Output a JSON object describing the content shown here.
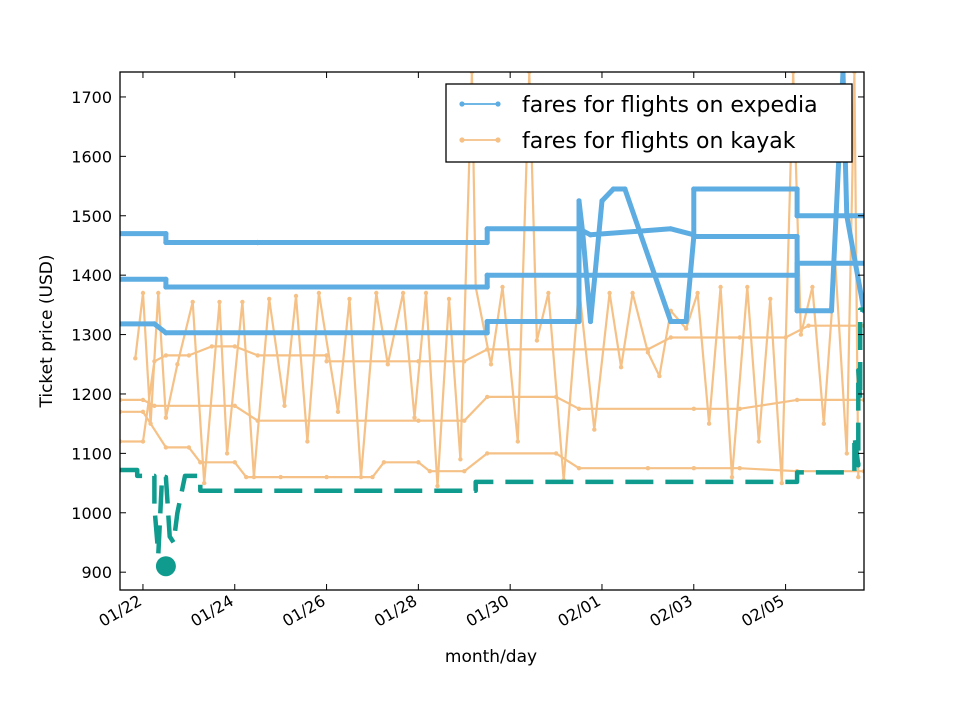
{
  "chart_data": {
    "type": "line",
    "xlabel": "month/day",
    "ylabel": "Ticket price (USD)",
    "x_ticks": [
      "01/22",
      "01/24",
      "01/26",
      "01/28",
      "01/30",
      "02/01",
      "02/03",
      "02/05"
    ],
    "y_ticks": [
      900,
      1000,
      1100,
      1200,
      1300,
      1400,
      1500,
      1600,
      1700
    ],
    "xlim": [
      "01/21 12:00",
      "02/06 17:00"
    ],
    "ylim": [
      870,
      1742
    ],
    "grid": false,
    "legend_position": "top-right",
    "colors": {
      "expedia": "#5dade2",
      "kayak": "#f5c186",
      "minimum": "#0f9b8e"
    },
    "series": [
      {
        "name": "fares for flights on expedia",
        "label_color": "#5dade2",
        "traces": [
          [
            [
              "01/21 12:00",
              1470
            ],
            [
              "01/22 12:00",
              1470
            ],
            [
              "01/22 12:00",
              1455
            ],
            [
              "01/24 12:00",
              1455
            ],
            [
              "01/24 12:00",
              1455
            ],
            [
              "01/29 12:00",
              1455
            ],
            [
              "01/29 12:00",
              1478
            ],
            [
              "01/31 12:00",
              1478
            ],
            [
              "01/31 18:00",
              1468
            ],
            [
              "02/02 12:00",
              1478
            ],
            [
              "02/03 00:00",
              1468
            ],
            [
              "02/03 00:00",
              1545
            ],
            [
              "02/05 06:00",
              1545
            ],
            [
              "02/05 06:00",
              1500
            ],
            [
              "02/06 17:00",
              1500
            ]
          ],
          [
            [
              "01/21 12:00",
              1393
            ],
            [
              "01/22 12:00",
              1393
            ],
            [
              "01/22 12:00",
              1380
            ],
            [
              "01/29 12:00",
              1380
            ],
            [
              "01/29 12:00",
              1400
            ],
            [
              "02/05 06:00",
              1400
            ],
            [
              "02/05 06:00",
              1420
            ],
            [
              "02/06 17:00",
              1420
            ]
          ],
          [
            [
              "01/21 12:00",
              1318
            ],
            [
              "01/22 06:00",
              1318
            ],
            [
              "01/22 12:00",
              1303
            ],
            [
              "01/29 12:00",
              1303
            ],
            [
              "01/29 12:00",
              1322
            ],
            [
              "01/31 12:00",
              1322
            ],
            [
              "01/31 12:00",
              1525
            ],
            [
              "01/31 14:00",
              1470
            ],
            [
              "01/31 18:00",
              1322
            ],
            [
              "02/01 00:00",
              1525
            ],
            [
              "02/01 06:00",
              1545
            ],
            [
              "02/01 12:00",
              1545
            ],
            [
              "02/02 12:00",
              1322
            ],
            [
              "02/02 20:00",
              1322
            ],
            [
              "02/03 00:00",
              1465
            ],
            [
              "02/05 06:00",
              1465
            ],
            [
              "02/05 06:00",
              1340
            ],
            [
              "02/06 00:00",
              1340
            ],
            [
              "02/06 06:00",
              1742
            ],
            [
              "02/06 08:00",
              1500
            ],
            [
              "02/06 17:00",
              1340
            ]
          ]
        ]
      },
      {
        "name": "fares for flights on kayak",
        "label_color": "#f5c186",
        "traces": [
          [
            [
              "01/21 12:00",
              1120
            ],
            [
              "01/22 00:00",
              1120
            ],
            [
              "01/22 06:00",
              1255
            ],
            [
              "01/22 12:00",
              1265
            ],
            [
              "01/23 00:00",
              1265
            ],
            [
              "01/23 12:00",
              1280
            ],
            [
              "01/24 00:00",
              1280
            ],
            [
              "01/24 12:00",
              1265
            ],
            [
              "01/26 00:00",
              1265
            ],
            [
              "01/26 00:00",
              1255
            ],
            [
              "01/28 00:00",
              1255
            ],
            [
              "01/29 00:00",
              1255
            ],
            [
              "01/29 12:00",
              1275
            ],
            [
              "02/02 00:00",
              1275
            ],
            [
              "02/02 12:00",
              1295
            ],
            [
              "02/04 00:00",
              1295
            ],
            [
              "02/05 00:00",
              1295
            ],
            [
              "02/05 12:00",
              1315
            ],
            [
              "02/06 17:00",
              1315
            ]
          ],
          [
            [
              "01/21 12:00",
              1190
            ],
            [
              "01/22 00:00",
              1190
            ],
            [
              "01/22 06:00",
              1180
            ],
            [
              "01/24 00:00",
              1180
            ],
            [
              "01/24 12:00",
              1155
            ],
            [
              "01/28 00:00",
              1155
            ],
            [
              "01/29 00:00",
              1155
            ],
            [
              "01/29 12:00",
              1195
            ],
            [
              "01/31 00:00",
              1195
            ],
            [
              "01/31 12:00",
              1175
            ],
            [
              "02/03 00:00",
              1175
            ],
            [
              "02/04 00:00",
              1175
            ],
            [
              "02/05 06:00",
              1190
            ],
            [
              "02/06 17:00",
              1190
            ]
          ],
          [
            [
              "01/21 12:00",
              1170
            ],
            [
              "01/22 00:00",
              1170
            ],
            [
              "01/22 12:00",
              1110
            ],
            [
              "01/23 00:00",
              1110
            ],
            [
              "01/23 06:00",
              1085
            ],
            [
              "01/24 00:00",
              1085
            ],
            [
              "01/24 06:00",
              1060
            ],
            [
              "01/25 00:00",
              1060
            ],
            [
              "01/26 00:00",
              1060
            ],
            [
              "01/27 00:00",
              1060
            ],
            [
              "01/27 06:00",
              1085
            ],
            [
              "01/28 00:00",
              1085
            ],
            [
              "01/28 06:00",
              1070
            ],
            [
              "01/29 00:00",
              1070
            ],
            [
              "01/29 12:00",
              1100
            ],
            [
              "01/31 00:00",
              1100
            ],
            [
              "01/31 12:00",
              1075
            ],
            [
              "02/02 00:00",
              1075
            ],
            [
              "02/03 00:00",
              1075
            ],
            [
              "02/04 00:00",
              1075
            ],
            [
              "02/05 06:00",
              1070
            ],
            [
              "02/06 17:00",
              1070
            ]
          ],
          [
            [
              "01/21 20:00",
              1260
            ],
            [
              "01/22 00:00",
              1370
            ],
            [
              "01/22 04:00",
              1150
            ],
            [
              "01/22 08:00",
              1370
            ],
            [
              "01/22 12:00",
              1160
            ],
            [
              "01/22 18:00",
              1250
            ],
            [
              "01/23 02:00",
              1355
            ],
            [
              "01/23 08:00",
              1050
            ],
            [
              "01/23 16:00",
              1355
            ],
            [
              "01/23 20:00",
              1100
            ],
            [
              "01/24 04:00",
              1355
            ],
            [
              "01/24 10:00",
              1060
            ],
            [
              "01/24 18:00",
              1360
            ],
            [
              "01/25 02:00",
              1180
            ],
            [
              "01/25 08:00",
              1365
            ],
            [
              "01/25 14:00",
              1120
            ],
            [
              "01/25 20:00",
              1370
            ],
            [
              "01/26 06:00",
              1170
            ],
            [
              "01/26 12:00",
              1360
            ],
            [
              "01/26 18:00",
              1060
            ],
            [
              "01/27 02:00",
              1370
            ],
            [
              "01/27 08:00",
              1250
            ],
            [
              "01/27 16:00",
              1370
            ],
            [
              "01/27 22:00",
              1160
            ],
            [
              "01/28 04:00",
              1370
            ],
            [
              "01/28 10:00",
              1045
            ],
            [
              "01/28 16:00",
              1360
            ],
            [
              "01/28 22:00",
              1090
            ],
            [
              "01/29 04:00",
              1742
            ],
            [
              "01/29 06:00",
              1380
            ],
            [
              "01/29 14:00",
              1250
            ],
            [
              "01/29 20:00",
              1380
            ],
            [
              "01/30 04:00",
              1120
            ],
            [
              "01/30 10:00",
              1742
            ],
            [
              "01/30 14:00",
              1290
            ],
            [
              "01/30 20:00",
              1370
            ],
            [
              "01/31 04:00",
              1055
            ],
            [
              "01/31 12:00",
              1380
            ],
            [
              "01/31 20:00",
              1140
            ],
            [
              "02/01 04:00",
              1370
            ],
            [
              "02/01 10:00",
              1245
            ],
            [
              "02/01 16:00",
              1370
            ],
            [
              "02/02 00:00",
              1270
            ],
            [
              "02/02 06:00",
              1230
            ],
            [
              "02/02 12:00",
              1340
            ],
            [
              "02/02 20:00",
              1310
            ],
            [
              "02/03 02:00",
              1370
            ],
            [
              "02/03 08:00",
              1150
            ],
            [
              "02/03 14:00",
              1380
            ],
            [
              "02/03 20:00",
              1060
            ],
            [
              "02/04 04:00",
              1380
            ],
            [
              "02/04 10:00",
              1120
            ],
            [
              "02/04 16:00",
              1360
            ],
            [
              "02/04 22:00",
              1050
            ],
            [
              "02/05 04:00",
              1742
            ],
            [
              "02/05 08:00",
              1300
            ],
            [
              "02/05 14:00",
              1380
            ],
            [
              "02/05 20:00",
              1150
            ],
            [
              "02/06 02:00",
              1420
            ],
            [
              "02/06 08:00",
              1100
            ],
            [
              "02/06 12:00",
              1742
            ],
            [
              "02/06 14:00",
              1060
            ]
          ]
        ]
      },
      {
        "name": "",
        "label_color": "#0f9b8e",
        "style": "dashed",
        "traces": [
          [
            [
              "01/21 12:00",
              1072
            ],
            [
              "01/21 21:00",
              1072
            ],
            [
              "01/21 21:00",
              1062
            ],
            [
              "01/22 06:00",
              1062
            ],
            [
              "01/22 06:00",
              1010
            ],
            [
              "01/22 08:00",
              930
            ],
            [
              "01/22 10:00",
              1062
            ],
            [
              "01/22 12:00",
              1060
            ],
            [
              "01/22 14:00",
              960
            ],
            [
              "01/22 16:00",
              950
            ],
            [
              "01/22 18:00",
              1000
            ],
            [
              "01/22 22:00",
              1062
            ],
            [
              "01/23 06:00",
              1062
            ],
            [
              "01/23 06:00",
              1037
            ],
            [
              "01/29 06:00",
              1037
            ],
            [
              "01/29 06:00",
              1052
            ],
            [
              "02/05 06:00",
              1052
            ],
            [
              "02/05 06:00",
              1068
            ],
            [
              "02/06 12:00",
              1068
            ],
            [
              "02/06 12:00",
              1130
            ],
            [
              "02/06 14:00",
              1080
            ],
            [
              "02/06 14:00",
              1240
            ],
            [
              "02/06 15:00",
              1190
            ],
            [
              "02/06 15:00",
              1342
            ],
            [
              "02/06 17:00",
              1342
            ]
          ]
        ]
      }
    ],
    "minimum_marker": {
      "x": "01/22 12:00",
      "y": 910,
      "color": "#0f9b8e"
    }
  },
  "legend": [
    {
      "label": "fares for flights on expedia",
      "color": "#5dade2"
    },
    {
      "label": "fares for flights on kayak",
      "color": "#f5c186"
    }
  ]
}
